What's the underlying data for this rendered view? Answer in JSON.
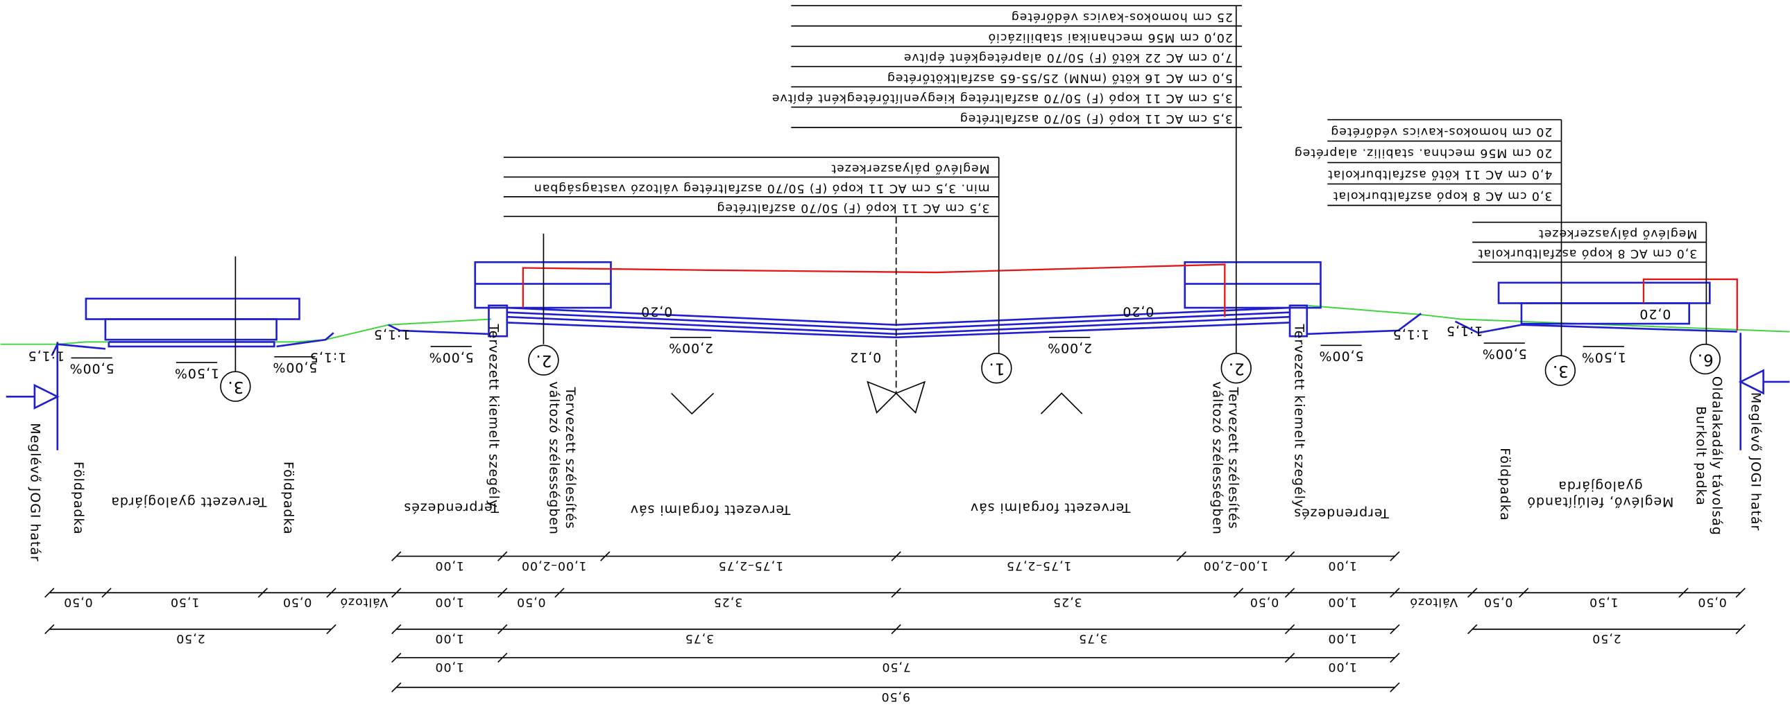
{
  "layer_boxes": [
    {
      "lines": [
        "25 cm homokos-kavics védőréteg",
        "20,0 cm M56 mechanikai stabilizáció",
        "7,0 cm AC 22 kötő (F) 50/70 alaprétegként építve",
        "5,0 cm AC 16 kötő (mNM) 25/55-65 aszfaltkötőréteg",
        "3,5 cm AC 11 kopó (F) 50/70 aszfaltréteg kiegyenlítőrétegként építve",
        "3,5 cm AC 11 kopó (F) 50/70 aszfaltréteg"
      ]
    },
    {
      "lines": [
        "Meglévő pályaszerkezet",
        "min. 3,5 cm AC 11 kopó (F) 50/70 aszfaltréteg   változó vastagságban",
        "3,5 cm AC 11 kopó (F) 50/70 aszfaltréteg"
      ]
    },
    {
      "lines": [
        "20 cm homokos-kavics védőréteg",
        "20 cm M56 mechna. stabiliz. alapréteg",
        "4,0 cm AC 11 kötő aszfaltburkolat",
        "3,0 cm AC 8 kopó aszfaltburkolat"
      ]
    },
    {
      "lines": [
        "Meglévő pályaszerkezet",
        "3,0 cm AC 8 kopó aszfaltburkolat"
      ]
    }
  ],
  "slope_labels": [
    "5,00%",
    "1,50%",
    "5,00%",
    "1:1,5",
    "1:1,5",
    "1:1,5",
    "5,00%",
    "2,00%",
    "0,20",
    "0,12",
    "2,00%",
    "0,20",
    "5,00%",
    "1:1,5",
    "1:1,5",
    "5,00%",
    "1,50%",
    "0,20"
  ],
  "circle_labels": [
    "3.",
    "2.",
    "1.",
    "2.",
    "3.",
    "6."
  ],
  "section_labels": [
    [
      "Meglévő JOGI határ"
    ],
    [
      "Földpadka"
    ],
    [
      "Tervezett gyalogjárda"
    ],
    [
      "Földpadka"
    ],
    [
      "Terprendezés"
    ],
    [
      "Tervezett kiemelt szegély"
    ],
    [
      "Tervezett szélesítés",
      "változó szélességben"
    ],
    [
      "Tervezett forgalmi sáv"
    ],
    [
      "Tervezett forgalmi sáv"
    ],
    [
      "Tervezett szélesítés",
      "változó szélességben"
    ],
    [
      "Tervezett kiemelt szegély"
    ],
    [
      "Terprendezés"
    ],
    [
      "Földpadka"
    ],
    [
      "Meglévő, felújítandó",
      "gyalogjárda"
    ],
    [
      "Oldalakadály távolság",
      "Burkolt padka"
    ],
    [
      "Meglévő JOGI határ"
    ]
  ],
  "dimension_rows": [
    [
      "1,00",
      "1,00–2,00",
      "1,75–2,75",
      "1,75–2,75",
      "1,00–2,00",
      "1,00"
    ],
    [
      "0,50",
      "1,50",
      "0,50",
      "Változó",
      "1,00",
      "0,50",
      "3,25",
      "3,25",
      "0,50",
      "1,00",
      "Változó",
      "0,50",
      "1,50",
      "0,50"
    ],
    [
      "2,50",
      "1,00",
      "3,75",
      "3,75",
      "1,00",
      "2,50"
    ],
    [
      "1,00",
      "7,50",
      "1,00"
    ],
    [
      "9,50"
    ]
  ]
}
